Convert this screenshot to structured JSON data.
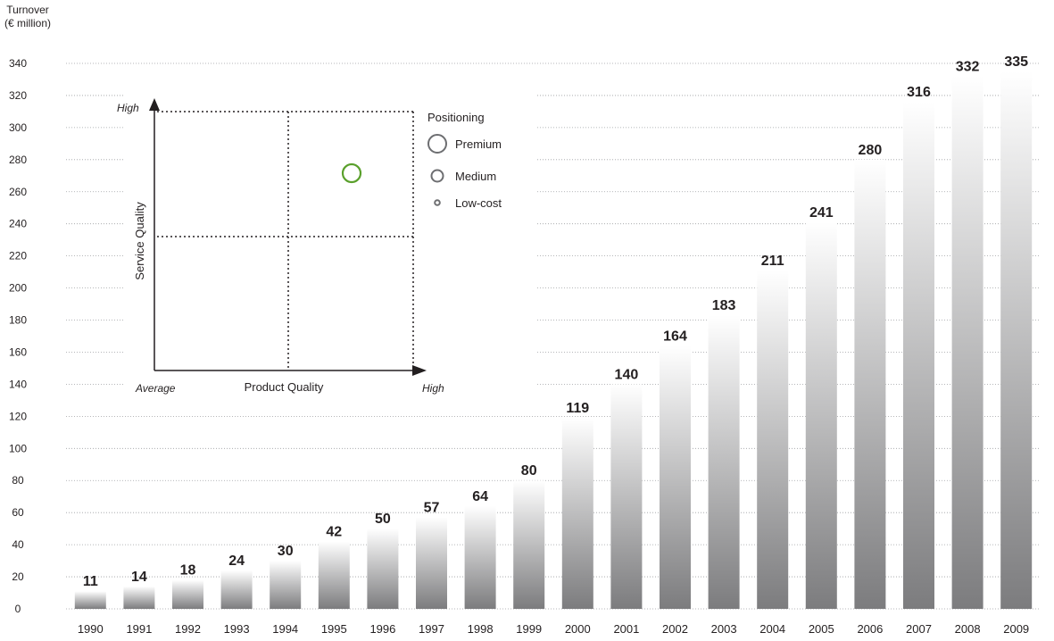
{
  "chart_data": {
    "type": "bar",
    "title": "",
    "ylabel": "Turnover\n(€ million)",
    "xlabel": "",
    "categories": [
      "1990",
      "1991",
      "1992",
      "1993",
      "1994",
      "1995",
      "1996",
      "1997",
      "1998",
      "1999",
      "2000",
      "2001",
      "2002",
      "2003",
      "2004",
      "2005",
      "2006",
      "2007",
      "2008",
      "2009"
    ],
    "values": [
      11,
      14,
      18,
      24,
      30,
      42,
      50,
      57,
      64,
      80,
      119,
      140,
      164,
      183,
      211,
      241,
      280,
      316,
      332,
      335
    ],
    "ylim": [
      0,
      340
    ],
    "yticks": [
      0,
      20,
      40,
      60,
      80,
      100,
      120,
      140,
      160,
      180,
      200,
      220,
      240,
      260,
      280,
      300,
      320,
      340
    ],
    "grid": true,
    "bar_gradient": [
      "#ffffff",
      "#7c7c7e"
    ]
  },
  "inset": {
    "y_axis_label": "Service Quality",
    "x_axis_label": "Product Quality",
    "y_high": "High",
    "x_low": "Average",
    "x_high": "High",
    "legend_title": "Positioning",
    "legend_items": [
      "Premium",
      "Medium",
      "Low-cost"
    ],
    "marker_color": "#5aa02c",
    "marker_level": "Premium"
  }
}
